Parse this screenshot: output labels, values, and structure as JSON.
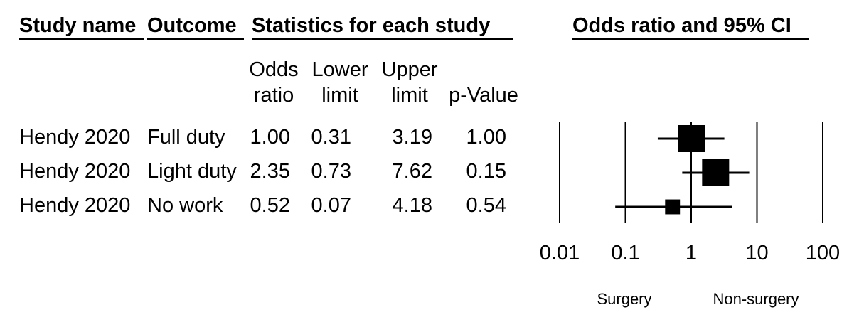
{
  "headers": {
    "study_name": "Study name",
    "outcome": "Outcome",
    "stats": "Statistics for each study",
    "plot": "Odds ratio and 95% CI"
  },
  "columns": {
    "odds_ratio": [
      "Odds",
      "ratio"
    ],
    "lower": [
      "Lower",
      "limit"
    ],
    "upper": [
      "Upper",
      "limit"
    ],
    "p": "p-Value"
  },
  "chart_data": {
    "type": "forest",
    "x_scale": "log",
    "x_ticks": [
      "0.01",
      "0.1",
      "1",
      "10",
      "100"
    ],
    "xlim": [
      0.01,
      100
    ],
    "reference_line": 1,
    "favours_left": "Surgery",
    "favours_right": "Non-surgery",
    "rows": [
      {
        "study": "Hendy 2020",
        "outcome": "Full duty",
        "or": "1.00",
        "lower": "0.31",
        "upper": "3.19",
        "p": "1.00",
        "or_value": 1.0,
        "lower_value": 0.31,
        "upper_value": 3.19,
        "weight": 1.0
      },
      {
        "study": "Hendy 2020",
        "outcome": "Light duty",
        "or": "2.35",
        "lower": "0.73",
        "upper": "7.62",
        "p": "0.15",
        "or_value": 2.35,
        "lower_value": 0.73,
        "upper_value": 7.62,
        "weight": 1.0
      },
      {
        "study": "Hendy 2020",
        "outcome": "No work",
        "or": "0.52",
        "lower": "0.07",
        "upper": "4.18",
        "p": "0.54",
        "or_value": 0.52,
        "lower_value": 0.07,
        "upper_value": 4.18,
        "weight": 0.55
      }
    ]
  }
}
